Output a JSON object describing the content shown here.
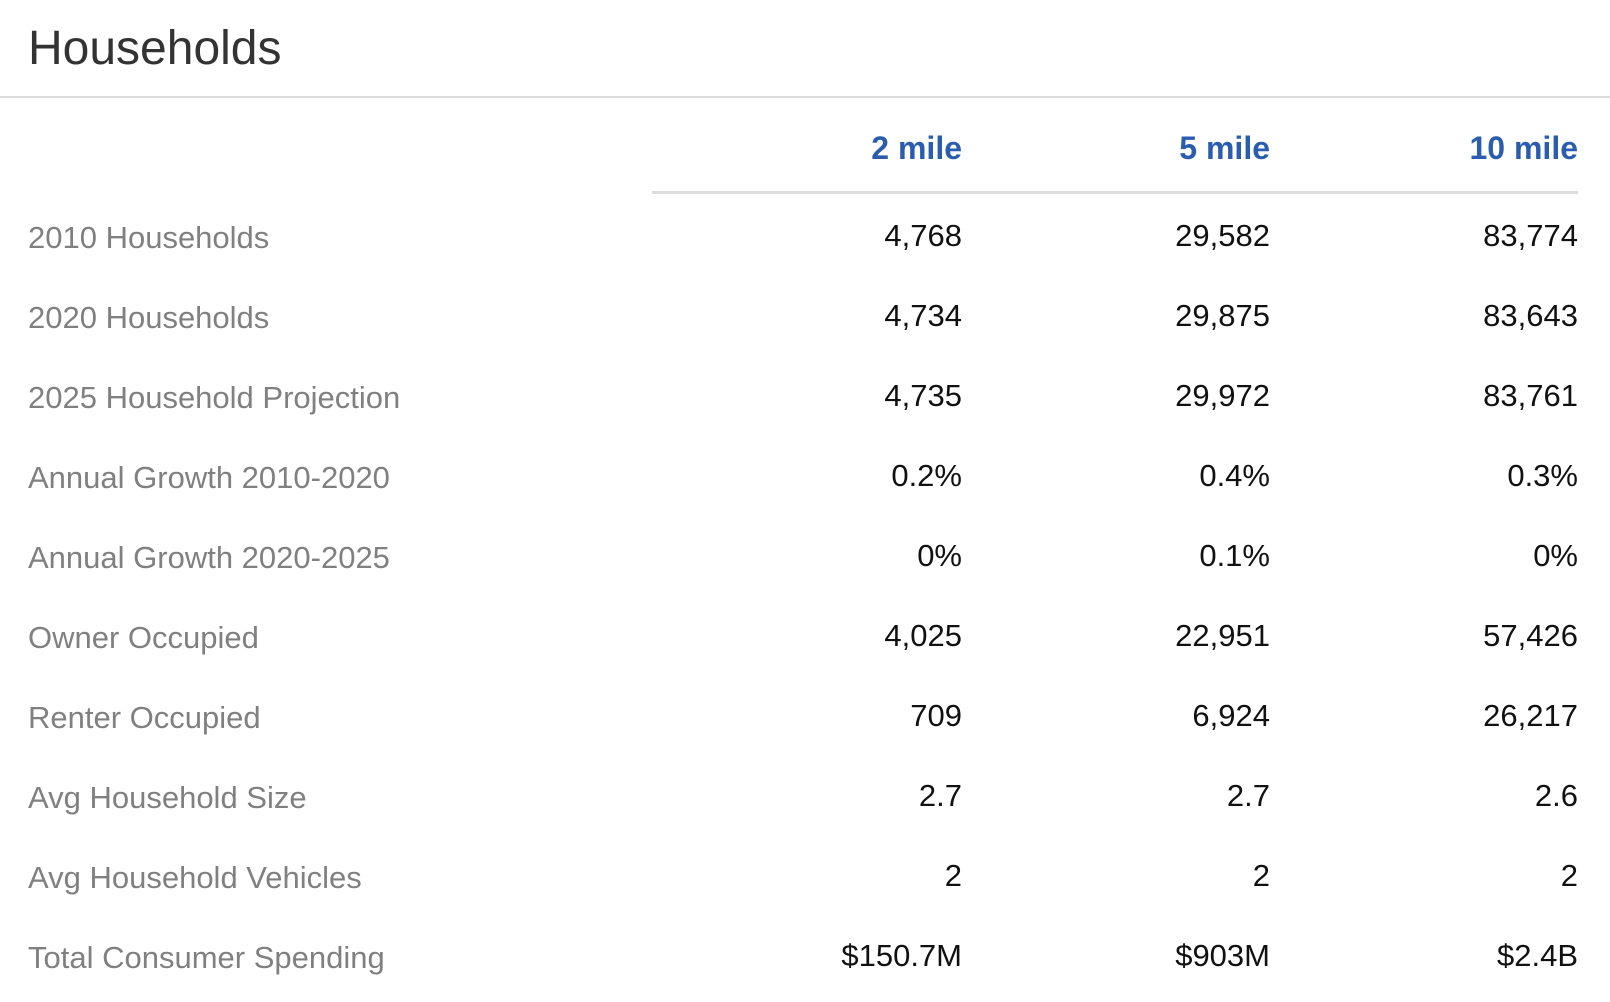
{
  "title": "Households",
  "columns": [
    "2 mile",
    "5 mile",
    "10 mile"
  ],
  "rows": [
    {
      "label": "2010 Households",
      "values": [
        "4,768",
        "29,582",
        "83,774"
      ]
    },
    {
      "label": "2020 Households",
      "values": [
        "4,734",
        "29,875",
        "83,643"
      ]
    },
    {
      "label": "2025 Household Projection",
      "values": [
        "4,735",
        "29,972",
        "83,761"
      ]
    },
    {
      "label": "Annual Growth 2010-2020",
      "values": [
        "0.2%",
        "0.4%",
        "0.3%"
      ]
    },
    {
      "label": "Annual Growth 2020-2025",
      "values": [
        "0%",
        "0.1%",
        "0%"
      ]
    },
    {
      "label": "Owner Occupied",
      "values": [
        "4,025",
        "22,951",
        "57,426"
      ]
    },
    {
      "label": "Renter Occupied",
      "values": [
        "709",
        "6,924",
        "26,217"
      ]
    },
    {
      "label": "Avg Household Size",
      "values": [
        "2.7",
        "2.7",
        "2.6"
      ]
    },
    {
      "label": "Avg Household Vehicles",
      "values": [
        "2",
        "2",
        "2"
      ]
    },
    {
      "label": "Total Consumer Spending",
      "values": [
        "$150.7M",
        "$903M",
        "$2.4B"
      ]
    }
  ]
}
